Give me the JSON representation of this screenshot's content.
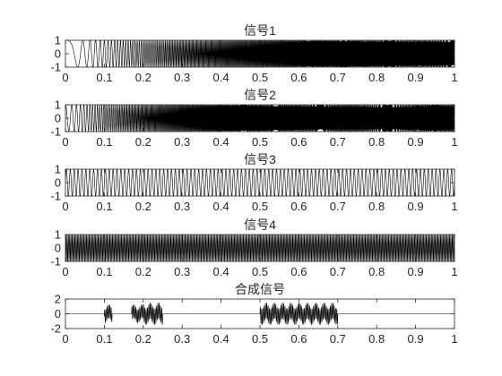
{
  "figure": {
    "background": "#ffffff",
    "axis_color": "#262626",
    "line_color": "#000000"
  },
  "chart_data": [
    {
      "type": "line",
      "title": "信号1",
      "xlabel": "",
      "ylabel": "",
      "xlim": [
        0,
        1
      ],
      "ylim": [
        -1,
        1
      ],
      "x_ticks": [
        "0",
        "0.1",
        "0.2",
        "0.3",
        "0.4",
        "0.5",
        "0.6",
        "0.7",
        "0.8",
        "0.9",
        "1"
      ],
      "y_ticks": [
        "-1",
        "0",
        "1"
      ],
      "grid": false,
      "signal": {
        "kind": "linear-chirp",
        "amplitude": 1,
        "f0_hz": 0,
        "f1_hz": 1000,
        "t_range": [
          0,
          1
        ]
      },
      "series": [
        {
          "x": [
            0,
            0.05,
            0.1,
            0.2,
            0.4,
            0.6,
            0.8,
            1.0
          ],
          "envelope": [
            1,
            1,
            1,
            1,
            1,
            1,
            1,
            1
          ]
        }
      ]
    },
    {
      "type": "line",
      "title": "信号2",
      "xlabel": "",
      "ylabel": "",
      "xlim": [
        0,
        1
      ],
      "ylim": [
        -1,
        1
      ],
      "x_ticks": [
        "0",
        "0.1",
        "0.2",
        "0.3",
        "0.4",
        "0.5",
        "0.6",
        "0.7",
        "0.8",
        "0.9",
        "1"
      ],
      "y_ticks": [
        "-1",
        "0",
        "1"
      ],
      "grid": false,
      "signal": {
        "kind": "linear-chirp",
        "amplitude": 1,
        "f0_hz": 50,
        "f1_hz": 1500,
        "t_range": [
          0,
          1
        ]
      },
      "series": [
        {
          "x": [
            0,
            0.05,
            0.1,
            0.2,
            0.4,
            0.6,
            0.8,
            1.0
          ],
          "envelope": [
            1,
            1,
            1,
            1,
            1,
            1,
            1,
            1
          ]
        }
      ]
    },
    {
      "type": "line",
      "title": "信号3",
      "xlabel": "",
      "ylabel": "",
      "xlim": [
        0,
        1
      ],
      "ylim": [
        -1,
        1
      ],
      "x_ticks": [
        "0",
        "0.1",
        "0.2",
        "0.3",
        "0.4",
        "0.5",
        "0.6",
        "0.7",
        "0.8",
        "0.9",
        "1"
      ],
      "y_ticks": [
        "-1",
        "0",
        "1"
      ],
      "grid": false,
      "signal": {
        "kind": "sine",
        "amplitude": 1,
        "f_hz": 100,
        "t_range": [
          0,
          1
        ]
      },
      "series": [
        {
          "x": [
            0,
            1
          ],
          "envelope": [
            1,
            1
          ]
        }
      ]
    },
    {
      "type": "line",
      "title": "信号4",
      "xlabel": "",
      "ylabel": "",
      "xlim": [
        0,
        1
      ],
      "ylim": [
        -1,
        1
      ],
      "x_ticks": [
        "0",
        "0.1",
        "0.2",
        "0.3",
        "0.4",
        "0.5",
        "0.6",
        "0.7",
        "0.8",
        "0.9",
        "1"
      ],
      "y_ticks": [
        "-1",
        "0",
        "1"
      ],
      "grid": false,
      "signal": {
        "kind": "sine",
        "amplitude": 1,
        "f_hz": 300,
        "t_range": [
          0,
          1
        ]
      },
      "series": [
        {
          "x": [
            0,
            1
          ],
          "envelope": [
            1,
            1
          ]
        }
      ]
    },
    {
      "type": "line",
      "title": "合成信号",
      "xlabel": "",
      "ylabel": "",
      "xlim": [
        0,
        1
      ],
      "ylim": [
        -2,
        2
      ],
      "x_ticks": [
        "0",
        "0.1",
        "0.2",
        "0.3",
        "0.4",
        "0.5",
        "0.6",
        "0.7",
        "0.8",
        "0.9",
        "1"
      ],
      "y_ticks": [
        "-2",
        "0",
        "2"
      ],
      "grid": false,
      "segments": [
        {
          "t_range": [
            0.1,
            0.12
          ],
          "source": "信号1",
          "amplitude": 1
        },
        {
          "t_range": [
            0.17,
            0.2
          ],
          "source": "信号2",
          "amplitude": 1
        },
        {
          "t_range": [
            0.2,
            0.25
          ],
          "source": "信号3+信号4",
          "amplitude": 1.2
        },
        {
          "t_range": [
            0.5,
            0.7
          ],
          "source": "信号3+信号4",
          "amplitude": 1.2
        }
      ],
      "series": [
        {
          "x": [
            0,
            0.1,
            0.12,
            0.17,
            0.2,
            0.25,
            0.5,
            0.7,
            1.0
          ],
          "envelope": [
            0,
            1,
            0,
            1,
            1.2,
            0,
            1.2,
            0,
            0
          ]
        }
      ]
    }
  ]
}
